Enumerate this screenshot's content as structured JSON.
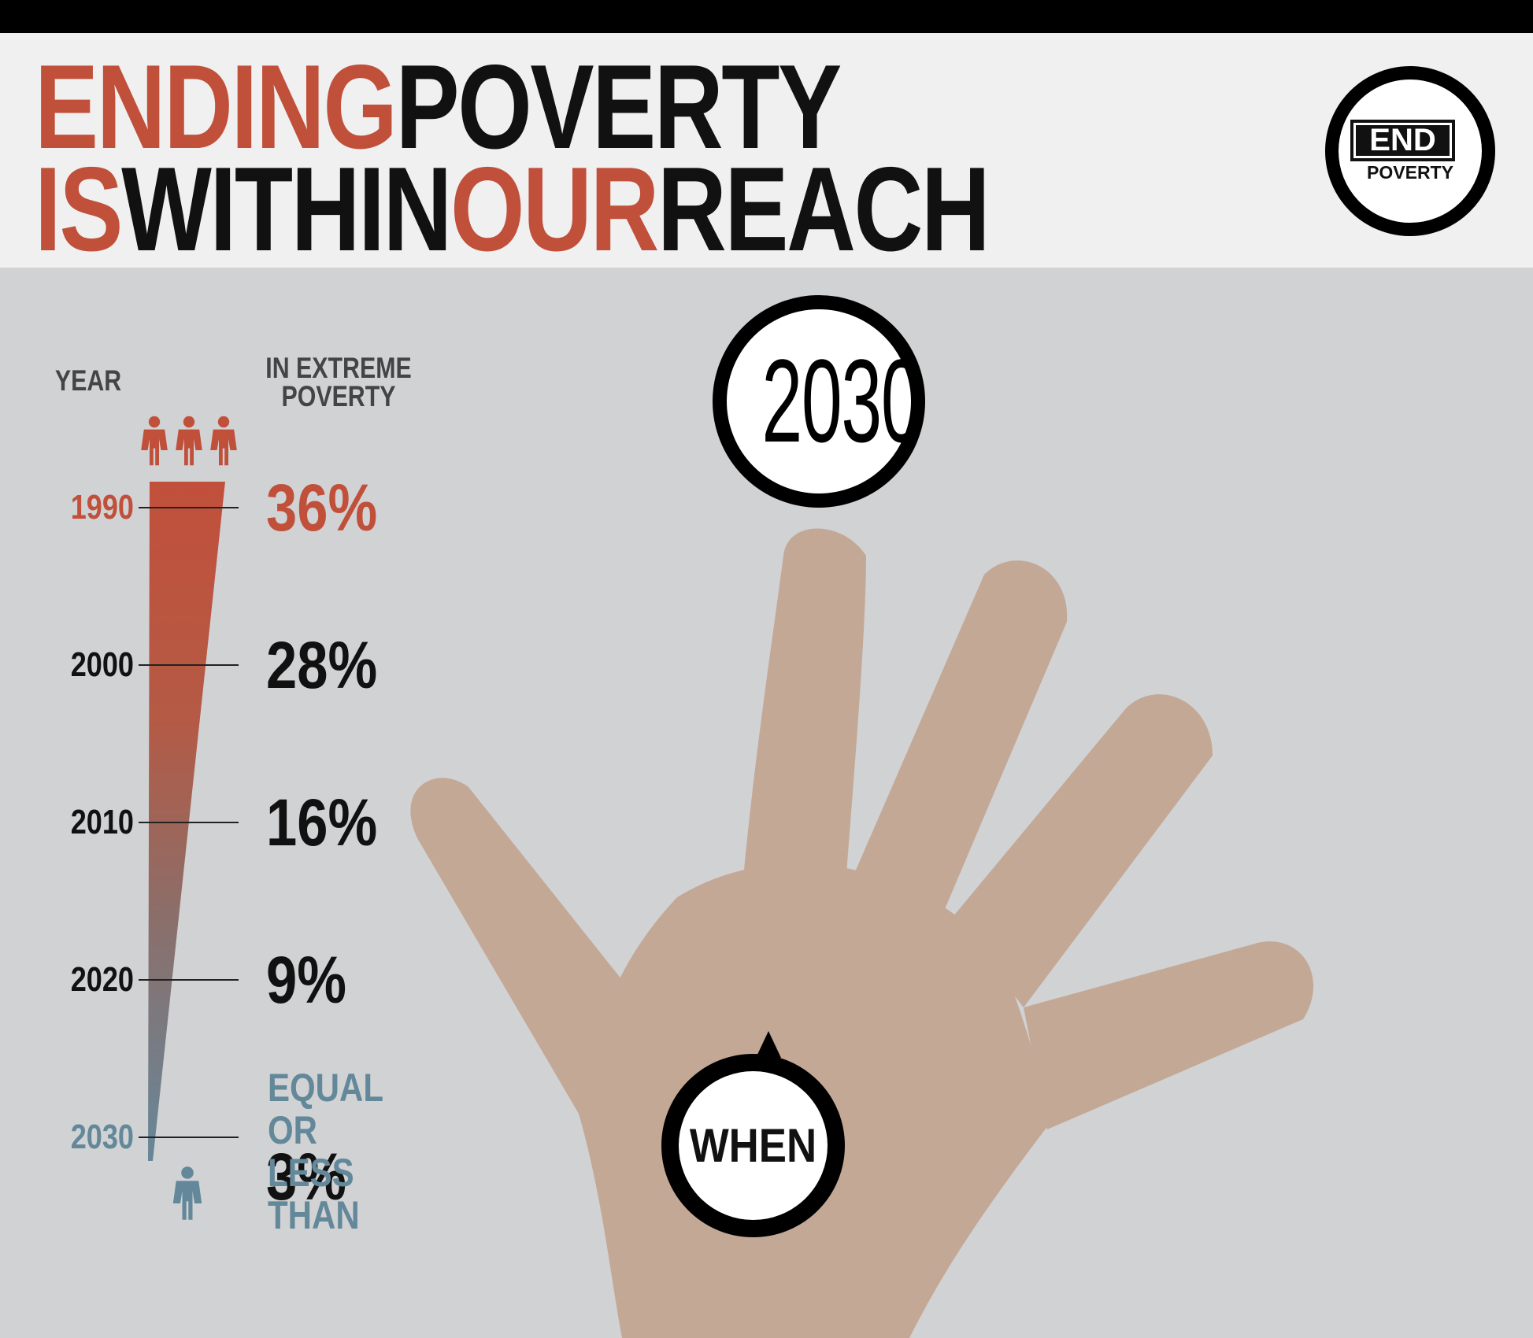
{
  "header": {
    "title_line_1": [
      {
        "text": "ENDING",
        "color": "red"
      },
      {
        "text": "POVERTY",
        "color": "black"
      }
    ],
    "title_line_2": [
      {
        "text": "IS",
        "color": "red"
      },
      {
        "text": "WITHIN",
        "color": "black"
      },
      {
        "text": "OUR",
        "color": "red"
      },
      {
        "text": "REACH",
        "color": "black"
      }
    ],
    "logo": {
      "top": "END",
      "bottom": "POVERTY"
    }
  },
  "colors": {
    "red": "#c1503b",
    "black": "#111111",
    "teal": "#63889a",
    "hand": "#c4a896",
    "background": "#d1d2d4",
    "header_bg": "#f0f0f1"
  },
  "icons": {
    "top": "three-people-icon",
    "bottom": "single-person-icon",
    "hand": "open-hand-illustration"
  },
  "chart_data": {
    "type": "bar",
    "headers": {
      "year": "YEAR",
      "value": "IN EXTREME POVERTY"
    },
    "unit": "%",
    "categories": [
      "1990",
      "2000",
      "2010",
      "2020",
      "2030"
    ],
    "values": [
      36,
      28,
      16,
      9,
      3
    ],
    "labels": [
      "36%",
      "28%",
      "16%",
      "9%",
      "3%"
    ],
    "label_colors": [
      "#c1503b",
      "#111111",
      "#111111",
      "#111111",
      "#111111"
    ],
    "year_colors": [
      "#c1503b",
      "#111111",
      "#111111",
      "#111111",
      "#63889a"
    ],
    "note_2030": "EQUAL OR LESS THAN",
    "target_year": "2030",
    "target_label": "WHEN"
  }
}
